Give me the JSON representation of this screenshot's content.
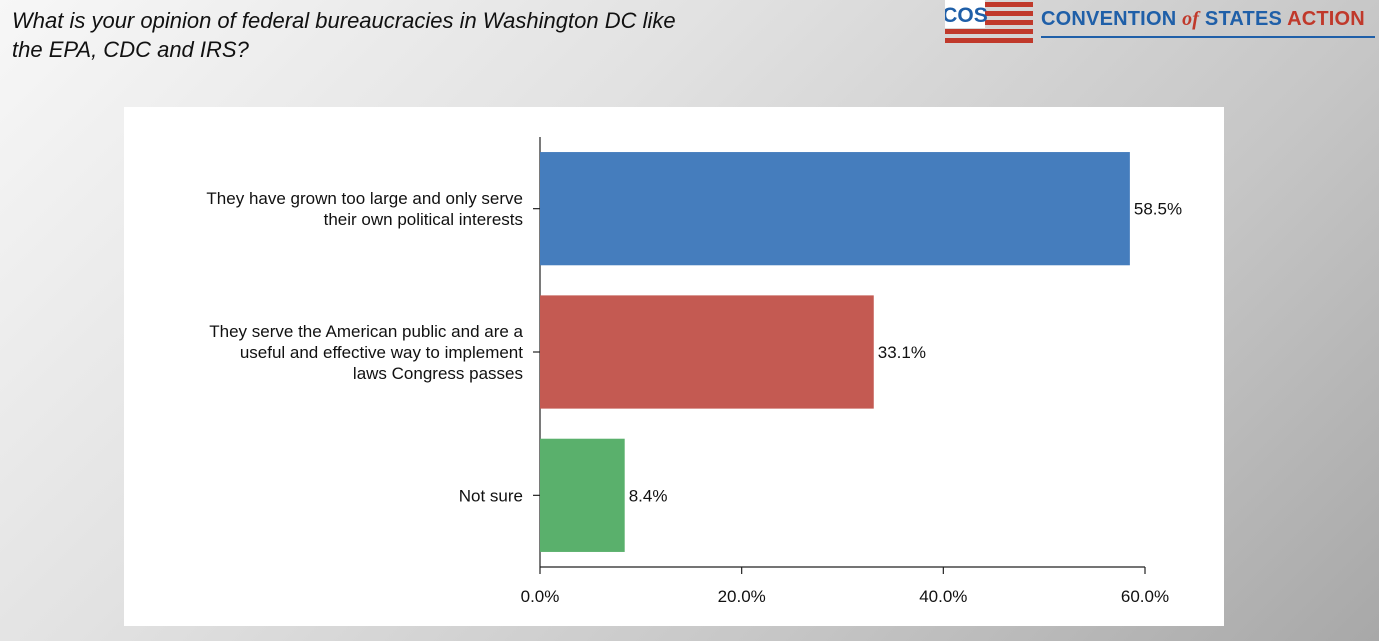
{
  "header": {
    "question": "What is your opinion of federal bureaucracies in Washington DC like\nthe EPA, CDC and IRS?"
  },
  "logo": {
    "mark_text": "COS",
    "name_part1": "CONVENTION ",
    "name_of": "of",
    "name_part2": " STATES ",
    "name_part3": "ACTION"
  },
  "colors": {
    "brand_blue": "#1f5fa8",
    "brand_red": "#c0392b"
  },
  "chart_data": {
    "type": "bar",
    "orientation": "horizontal",
    "categories": [
      [
        "They have grown too large and only serve",
        "their own political interests"
      ],
      [
        "They serve the American public and are a",
        "useful and effective way to implement",
        "laws Congress passes"
      ],
      [
        "Not sure"
      ]
    ],
    "values": [
      58.5,
      33.1,
      8.4
    ],
    "value_labels": [
      "58.5%",
      "33.1%",
      "8.4%"
    ],
    "colors": [
      "#457dbd",
      "#c45a52",
      "#5ab06c"
    ],
    "xlim": [
      0,
      60
    ],
    "xticks": [
      0,
      20,
      40,
      60
    ],
    "xtick_labels": [
      "0.0%",
      "20.0%",
      "40.0%",
      "60.0%"
    ],
    "grid": false,
    "legend": false
  }
}
